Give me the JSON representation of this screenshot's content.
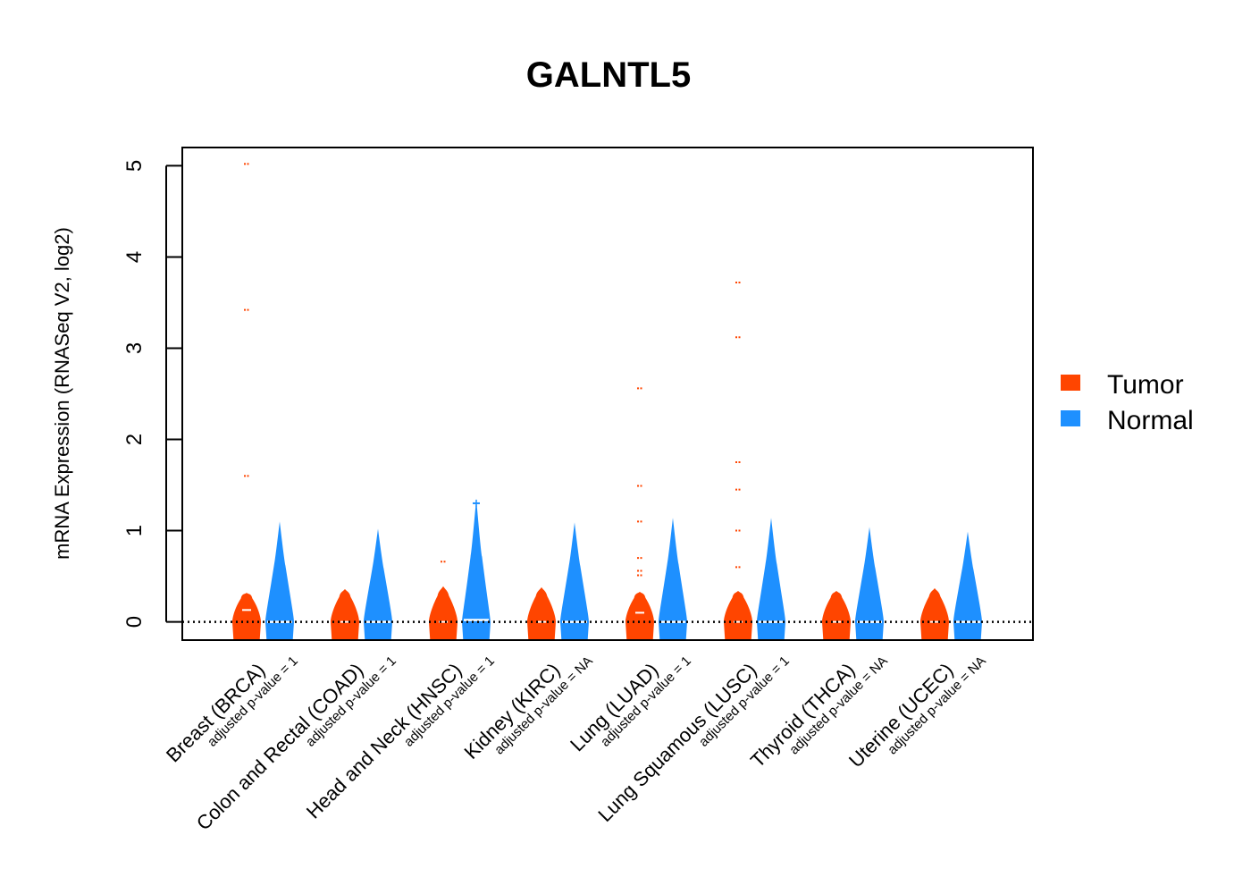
{
  "chart_data": {
    "type": "violin",
    "title": "GALNTL5",
    "ylabel": "mRNA Expression (RNASeq V2, log2)",
    "xlabel": "",
    "ylim": [
      -0.2,
      5.2
    ],
    "yticks": [
      0,
      1,
      2,
      3,
      4,
      5
    ],
    "reference_line": 0,
    "legend": {
      "position": "right",
      "entries": [
        {
          "name": "Tumor",
          "color": "#FF4500"
        },
        {
          "name": "Normal",
          "color": "#1E90FF"
        }
      ]
    },
    "colors": {
      "tumor": "#FF4500",
      "normal": "#1E90FF"
    },
    "categories": [
      {
        "label": "Breast (BRCA)",
        "pvalue": "adjusted p-value = 1",
        "tumor": {
          "max": 0.32,
          "median": 0.13,
          "outliers": [
            5.02,
            3.42,
            1.6
          ]
        },
        "normal": {
          "max": 1.1,
          "median": 0.0,
          "outliers": []
        }
      },
      {
        "label": "Colon and Rectal (COAD)",
        "pvalue": "adjusted p-value = 1",
        "tumor": {
          "max": 0.36,
          "median": 0.0,
          "outliers": []
        },
        "normal": {
          "max": 1.02,
          "median": 0.0,
          "outliers": []
        }
      },
      {
        "label": "Head and Neck (HNSC)",
        "pvalue": "adjusted p-value = 1",
        "tumor": {
          "max": 0.39,
          "median": 0.0,
          "outliers": [
            0.66
          ]
        },
        "normal": {
          "max": 1.35,
          "median": 0.02,
          "outliers": [
            1.3
          ]
        }
      },
      {
        "label": "Kidney (KIRC)",
        "pvalue": "adjusted p-value = NA",
        "tumor": {
          "max": 0.38,
          "median": 0.0,
          "outliers": []
        },
        "normal": {
          "max": 1.09,
          "median": 0.0,
          "outliers": []
        }
      },
      {
        "label": "Lung (LUAD)",
        "pvalue": "adjusted p-value = 1",
        "tumor": {
          "max": 0.33,
          "median": 0.1,
          "outliers": [
            2.56,
            1.49,
            1.1,
            0.7,
            0.56,
            0.51
          ]
        },
        "normal": {
          "max": 1.14,
          "median": 0.0,
          "outliers": []
        }
      },
      {
        "label": "Lung Squamous (LUSC)",
        "pvalue": "adjusted p-value = 1",
        "tumor": {
          "max": 0.34,
          "median": 0.0,
          "outliers": [
            3.72,
            3.12,
            1.75,
            1.45,
            1.0,
            0.6
          ]
        },
        "normal": {
          "max": 1.14,
          "median": 0.0,
          "outliers": []
        }
      },
      {
        "label": "Thyroid (THCA)",
        "pvalue": "adjusted p-value = NA",
        "tumor": {
          "max": 0.34,
          "median": 0.0,
          "outliers": []
        },
        "normal": {
          "max": 1.04,
          "median": 0.0,
          "outliers": []
        }
      },
      {
        "label": "Uterine (UCEC)",
        "pvalue": "adjusted p-value = NA",
        "tumor": {
          "max": 0.37,
          "median": 0.0,
          "outliers": []
        },
        "normal": {
          "max": 0.99,
          "median": 0.0,
          "outliers": []
        }
      }
    ]
  }
}
